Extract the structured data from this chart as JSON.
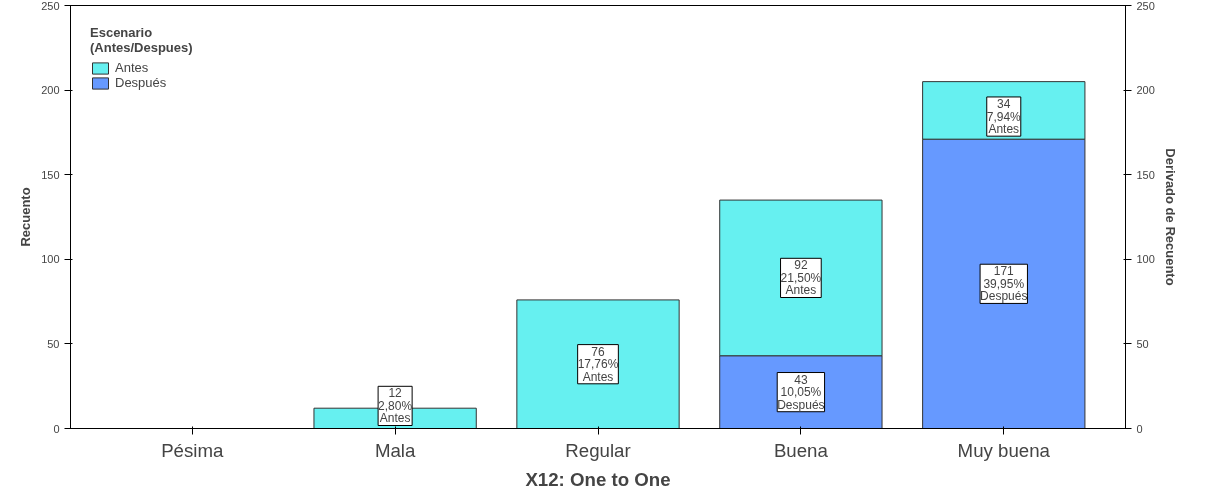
{
  "chart_data": {
    "type": "bar",
    "stacked": true,
    "xlabel": "X12: One to One",
    "ylabel": "Recuento",
    "y2label": "Derivado de Recuento",
    "legend_title": "Escenario\n(Antes/Despues)",
    "legend": "top left",
    "grid": false,
    "categories": [
      "Pésima",
      "Mala",
      "Regular",
      "Buena",
      "Muy buena"
    ],
    "ylim": [
      0,
      250
    ],
    "yticks": [
      0,
      50,
      100,
      150,
      200,
      250
    ],
    "y2lim": [
      0,
      250
    ],
    "y2ticks": [
      0,
      50,
      100,
      150,
      200,
      250
    ],
    "series": [
      {
        "name": "Después",
        "color": "#6699ff",
        "values": [
          null,
          null,
          null,
          43,
          171
        ],
        "value_labels": [
          null,
          null,
          null,
          "43\n10,05%\nDespués",
          "171\n39,95%\nDespués"
        ]
      },
      {
        "name": "Antes",
        "color": "#66f0f0",
        "values": [
          null,
          12,
          76,
          92,
          34
        ],
        "value_labels": [
          null,
          "12\n2,80%\nAntes",
          "76\n17,76%\nAntes",
          "92\n21,50%\nAntes",
          "34\n7,94%\nAntes"
        ]
      }
    ]
  }
}
